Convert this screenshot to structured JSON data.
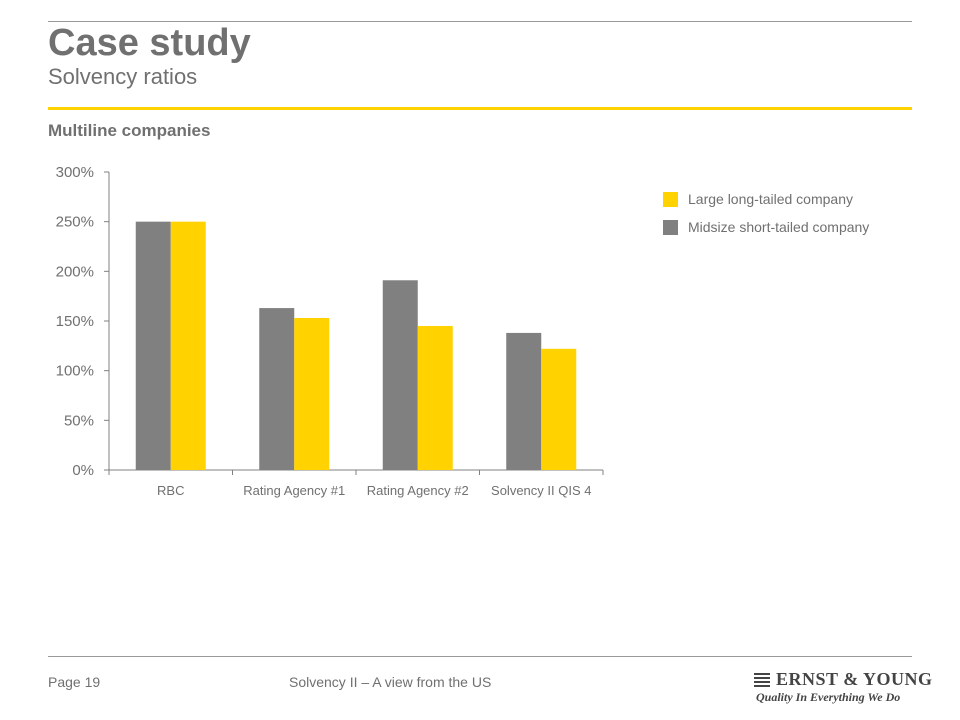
{
  "header": {
    "title": "Case study",
    "subtitle": "Solvency ratios",
    "section": "Multiline companies"
  },
  "colors": {
    "accent": "#ffd200",
    "series_midsize": "#808080",
    "series_large": "#ffd200",
    "text": "#707070"
  },
  "chart_data": {
    "type": "bar",
    "categories": [
      "RBC",
      "Rating Agency #1",
      "Rating Agency #2",
      "Solvency II QIS 4"
    ],
    "series": [
      {
        "name": "Midsize short-tailed company",
        "color": "#808080",
        "values": [
          250,
          163,
          191,
          138
        ]
      },
      {
        "name": "Large long-tailed company",
        "color": "#ffd200",
        "values": [
          250,
          153,
          145,
          122
        ]
      }
    ],
    "y_ticks": [
      "0%",
      "50%",
      "100%",
      "150%",
      "200%",
      "250%",
      "300%"
    ],
    "y_tick_values": [
      0,
      50,
      100,
      150,
      200,
      250,
      300
    ],
    "ylim": [
      0,
      300
    ],
    "unit": "%",
    "grid": false,
    "legend_position": "top-right",
    "legend": [
      {
        "label": "Large long-tailed company",
        "color": "#ffd200"
      },
      {
        "label": "Midsize short-tailed company",
        "color": "#808080"
      }
    ]
  },
  "footer": {
    "page": "Page 19",
    "text": "Solvency II – A view from the US",
    "logo_name": "ERNST & YOUNG",
    "logo_tagline": "Quality In Everything We Do"
  }
}
